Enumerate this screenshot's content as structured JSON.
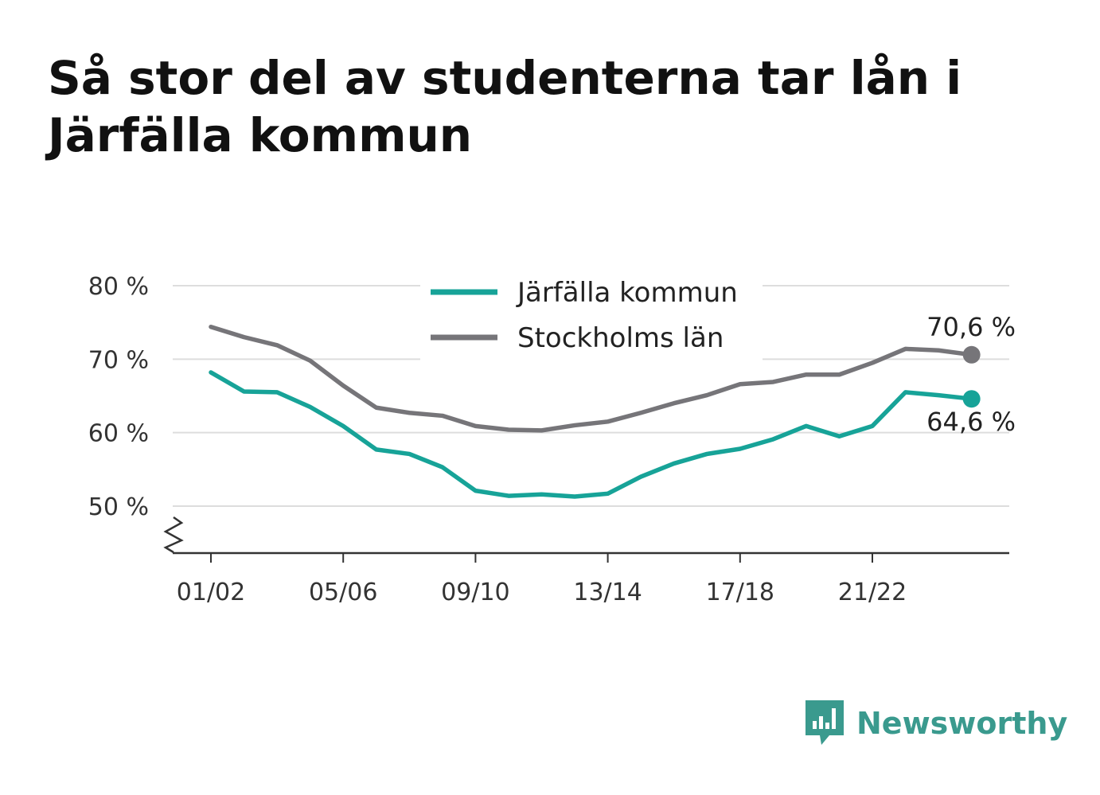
{
  "title": "Så stor del av studenterna tar lån i Järfälla kommun",
  "brand": {
    "name": "Newsworthy",
    "icon": "newsworthy-logo-icon",
    "color": "#3a9a8e"
  },
  "chart_data": {
    "type": "line",
    "title": "Så stor del av studenterna tar lån i Järfälla kommun",
    "xlabel": "",
    "ylabel": "",
    "x": [
      "01/02",
      "02/03",
      "03/04",
      "04/05",
      "05/06",
      "06/07",
      "07/08",
      "08/09",
      "09/10",
      "10/11",
      "11/12",
      "12/13",
      "13/14",
      "14/15",
      "15/16",
      "16/17",
      "17/18",
      "18/19",
      "19/20",
      "20/21",
      "21/22",
      "22/23",
      "23/24",
      "24/25"
    ],
    "x_tick_labels": [
      "01/02",
      "05/06",
      "09/10",
      "13/14",
      "17/18",
      "21/22"
    ],
    "y_ticks": [
      50,
      60,
      70,
      80
    ],
    "y_tick_labels": [
      "50 %",
      "60 %",
      "70 %",
      "80 %"
    ],
    "ylim": [
      44,
      80
    ],
    "y_axis_break": true,
    "grid": "horizontal",
    "legend": "top-center",
    "series": [
      {
        "name": "Järfälla kommun",
        "color": "#17a398",
        "values": [
          68.2,
          65.6,
          65.5,
          63.5,
          60.9,
          57.7,
          57.1,
          55.3,
          52.1,
          51.4,
          51.6,
          51.3,
          51.7,
          54.0,
          55.8,
          57.1,
          57.8,
          59.1,
          60.9,
          59.5,
          60.9,
          65.5,
          65.1,
          64.6
        ],
        "end_label": "64,6 %"
      },
      {
        "name": "Stockholms län",
        "color": "#767579",
        "values": [
          74.4,
          73.0,
          71.9,
          69.8,
          66.4,
          63.4,
          62.7,
          62.3,
          60.9,
          60.4,
          60.3,
          61.0,
          61.5,
          62.7,
          64.0,
          65.1,
          66.6,
          66.9,
          67.9,
          67.9,
          69.5,
          71.4,
          71.2,
          70.6
        ],
        "end_label": "70,6 %"
      }
    ]
  }
}
